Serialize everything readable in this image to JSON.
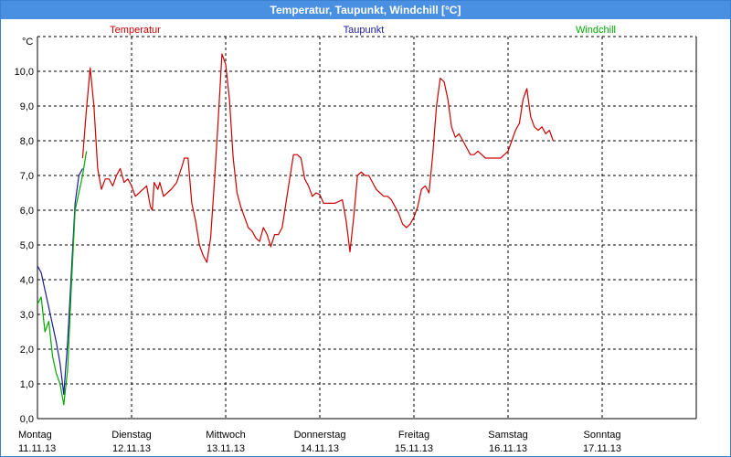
{
  "window": {
    "title": "Temperatur, Taupunkt, Windchill [°C]"
  },
  "chart_data": {
    "type": "line",
    "title": "Temperatur, Taupunkt, Windchill [°C]",
    "ylabel": "°C",
    "ylim": [
      0,
      11
    ],
    "xlim": [
      0,
      7
    ],
    "grid": true,
    "legend_position": "top",
    "y_ticks": [
      "0,0",
      "1,0",
      "2,0",
      "3,0",
      "4,0",
      "5,0",
      "6,0",
      "7,0",
      "8,0",
      "9,0",
      "10,0"
    ],
    "x_ticks": [
      {
        "day": "Montag",
        "date": "11.11.13"
      },
      {
        "day": "Dienstag",
        "date": "12.11.13"
      },
      {
        "day": "Mittwoch",
        "date": "13.11.13"
      },
      {
        "day": "Donnerstag",
        "date": "14.11.13"
      },
      {
        "day": "Freitag",
        "date": "15.11.13"
      },
      {
        "day": "Samstag",
        "date": "16.11.13"
      },
      {
        "day": "Sonntag",
        "date": "17.11.13"
      }
    ],
    "series": [
      {
        "name": "Temperatur",
        "color": "#cc0000",
        "points": [
          [
            0.48,
            7.5
          ],
          [
            0.52,
            8.9
          ],
          [
            0.56,
            10.1
          ],
          [
            0.6,
            9.0
          ],
          [
            0.64,
            7.2
          ],
          [
            0.68,
            6.6
          ],
          [
            0.72,
            6.9
          ],
          [
            0.76,
            6.9
          ],
          [
            0.8,
            6.7
          ],
          [
            0.84,
            7.0
          ],
          [
            0.88,
            7.2
          ],
          [
            0.92,
            6.8
          ],
          [
            0.96,
            6.9
          ],
          [
            1.0,
            6.7
          ],
          [
            1.04,
            6.4
          ],
          [
            1.08,
            6.5
          ],
          [
            1.12,
            6.6
          ],
          [
            1.16,
            6.7
          ],
          [
            1.2,
            6.1
          ],
          [
            1.22,
            6.0
          ],
          [
            1.24,
            6.8
          ],
          [
            1.28,
            6.6
          ],
          [
            1.3,
            6.8
          ],
          [
            1.34,
            6.4
          ],
          [
            1.38,
            6.5
          ],
          [
            1.42,
            6.6
          ],
          [
            1.48,
            6.8
          ],
          [
            1.54,
            7.3
          ],
          [
            1.56,
            7.5
          ],
          [
            1.6,
            7.5
          ],
          [
            1.64,
            6.2
          ],
          [
            1.68,
            5.7
          ],
          [
            1.72,
            5.0
          ],
          [
            1.76,
            4.7
          ],
          [
            1.8,
            4.5
          ],
          [
            1.84,
            5.2
          ],
          [
            1.88,
            6.8
          ],
          [
            1.92,
            8.6
          ],
          [
            1.96,
            10.5
          ],
          [
            2.0,
            10.2
          ],
          [
            2.04,
            9.2
          ],
          [
            2.08,
            7.5
          ],
          [
            2.12,
            6.5
          ],
          [
            2.16,
            6.1
          ],
          [
            2.2,
            5.8
          ],
          [
            2.24,
            5.5
          ],
          [
            2.28,
            5.4
          ],
          [
            2.32,
            5.2
          ],
          [
            2.36,
            5.1
          ],
          [
            2.4,
            5.5
          ],
          [
            2.44,
            5.3
          ],
          [
            2.48,
            4.95
          ],
          [
            2.52,
            5.3
          ],
          [
            2.56,
            5.3
          ],
          [
            2.6,
            5.5
          ],
          [
            2.64,
            6.2
          ],
          [
            2.68,
            6.9
          ],
          [
            2.72,
            7.6
          ],
          [
            2.76,
            7.6
          ],
          [
            2.8,
            7.5
          ],
          [
            2.84,
            6.9
          ],
          [
            2.88,
            6.7
          ],
          [
            2.92,
            6.4
          ],
          [
            2.96,
            6.5
          ],
          [
            3.0,
            6.45
          ],
          [
            3.04,
            6.2
          ],
          [
            3.08,
            6.2
          ],
          [
            3.12,
            6.2
          ],
          [
            3.16,
            6.2
          ],
          [
            3.2,
            6.25
          ],
          [
            3.24,
            6.3
          ],
          [
            3.28,
            5.7
          ],
          [
            3.32,
            4.8
          ],
          [
            3.36,
            5.8
          ],
          [
            3.4,
            7.0
          ],
          [
            3.44,
            7.1
          ],
          [
            3.48,
            7.0
          ],
          [
            3.52,
            7.0
          ],
          [
            3.56,
            6.8
          ],
          [
            3.6,
            6.6
          ],
          [
            3.64,
            6.5
          ],
          [
            3.68,
            6.4
          ],
          [
            3.72,
            6.4
          ],
          [
            3.76,
            6.3
          ],
          [
            3.8,
            6.1
          ],
          [
            3.84,
            5.9
          ],
          [
            3.88,
            5.6
          ],
          [
            3.92,
            5.5
          ],
          [
            3.96,
            5.6
          ],
          [
            4.0,
            5.8
          ],
          [
            4.04,
            6.1
          ],
          [
            4.08,
            6.6
          ],
          [
            4.12,
            6.7
          ],
          [
            4.16,
            6.5
          ],
          [
            4.2,
            7.6
          ],
          [
            4.24,
            9.0
          ],
          [
            4.28,
            9.8
          ],
          [
            4.32,
            9.7
          ],
          [
            4.36,
            9.2
          ],
          [
            4.4,
            8.4
          ],
          [
            4.44,
            8.1
          ],
          [
            4.48,
            8.2
          ],
          [
            4.52,
            8.0
          ],
          [
            4.56,
            7.8
          ],
          [
            4.6,
            7.6
          ],
          [
            4.64,
            7.6
          ],
          [
            4.68,
            7.7
          ],
          [
            4.72,
            7.6
          ],
          [
            4.76,
            7.5
          ],
          [
            4.8,
            7.5
          ],
          [
            4.84,
            7.5
          ],
          [
            4.88,
            7.5
          ],
          [
            4.92,
            7.5
          ],
          [
            4.96,
            7.6
          ],
          [
            5.0,
            7.7
          ],
          [
            5.04,
            8.0
          ],
          [
            5.08,
            8.3
          ],
          [
            5.12,
            8.5
          ],
          [
            5.16,
            9.2
          ],
          [
            5.2,
            9.5
          ],
          [
            5.24,
            8.7
          ],
          [
            5.28,
            8.4
          ],
          [
            5.32,
            8.3
          ],
          [
            5.36,
            8.4
          ],
          [
            5.4,
            8.2
          ],
          [
            5.44,
            8.3
          ],
          [
            5.48,
            8.0
          ]
        ]
      },
      {
        "name": "Taupunkt",
        "color": "#1a1aa0",
        "points": [
          [
            0.0,
            4.4
          ],
          [
            0.04,
            4.2
          ],
          [
            0.08,
            3.7
          ],
          [
            0.12,
            3.2
          ],
          [
            0.16,
            2.7
          ],
          [
            0.2,
            2.2
          ],
          [
            0.24,
            1.6
          ],
          [
            0.28,
            0.7
          ],
          [
            0.32,
            2.2
          ],
          [
            0.36,
            4.2
          ],
          [
            0.4,
            6.2
          ],
          [
            0.44,
            7.0
          ],
          [
            0.48,
            7.2
          ]
        ]
      },
      {
        "name": "Windchill",
        "color": "#00aa00",
        "points": [
          [
            0.0,
            3.3
          ],
          [
            0.04,
            3.5
          ],
          [
            0.08,
            2.5
          ],
          [
            0.12,
            2.8
          ],
          [
            0.16,
            1.8
          ],
          [
            0.2,
            1.3
          ],
          [
            0.24,
            1.0
          ],
          [
            0.28,
            0.4
          ],
          [
            0.32,
            1.4
          ],
          [
            0.36,
            3.8
          ],
          [
            0.4,
            6.0
          ],
          [
            0.44,
            6.5
          ],
          [
            0.48,
            7.0
          ],
          [
            0.52,
            7.7
          ]
        ]
      }
    ]
  }
}
